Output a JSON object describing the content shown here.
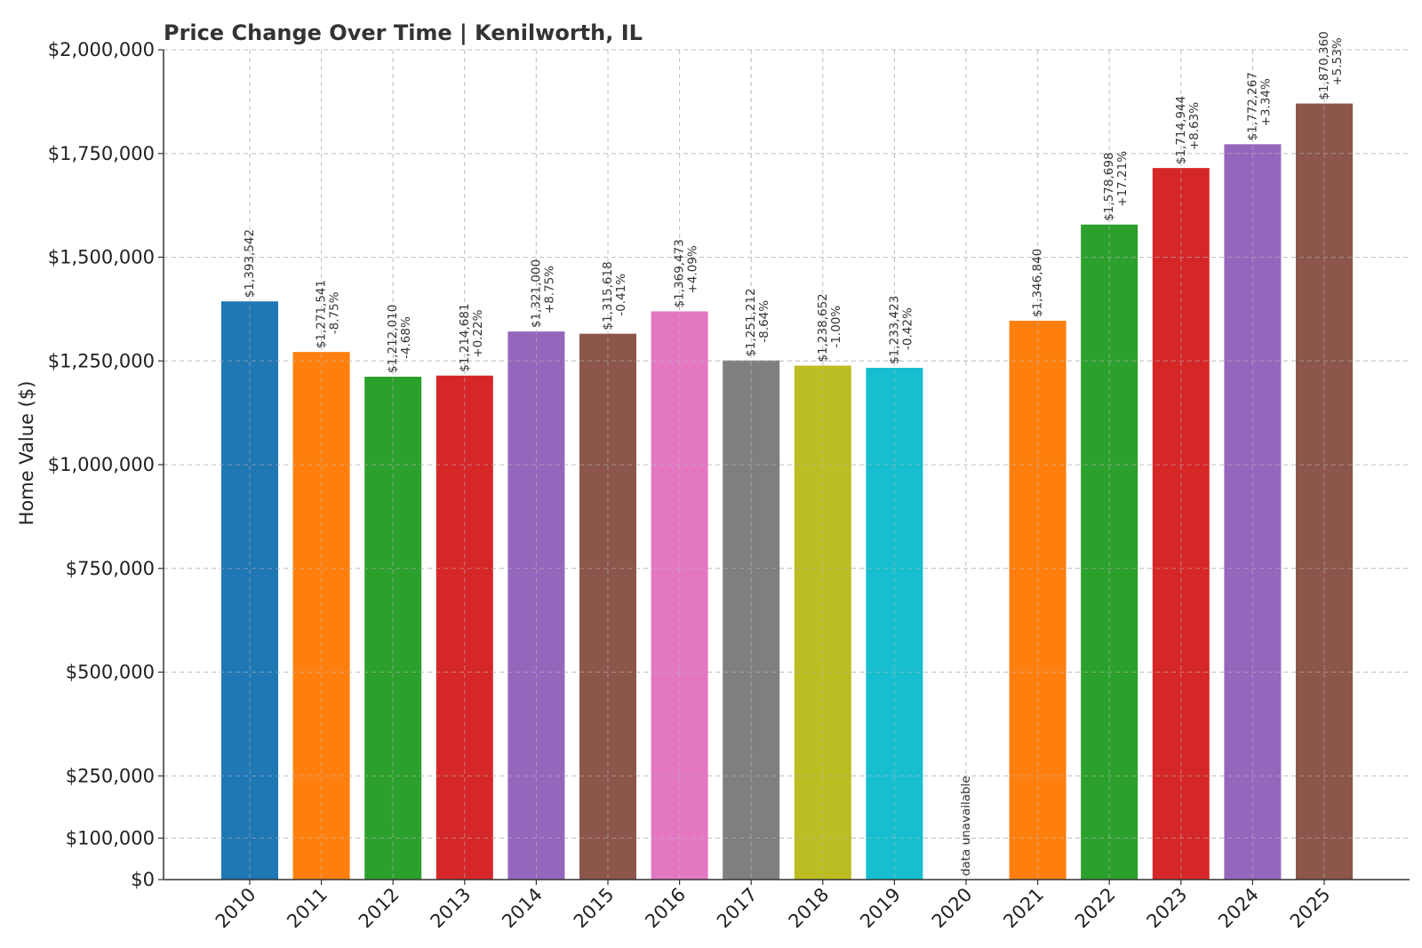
{
  "chart_data": {
    "type": "bar",
    "title": "Price Change Over Time | Kenilworth, IL",
    "xlabel": "",
    "ylabel": "Home Value ($)",
    "ylim": [
      0,
      2000000
    ],
    "yticks": [
      0,
      100000,
      250000,
      500000,
      750000,
      1000000,
      1250000,
      1500000,
      1750000,
      2000000
    ],
    "ytick_labels": [
      "$0",
      "$100,000",
      "$250,000",
      "$500,000",
      "$750,000",
      "$1,000,000",
      "$1,250,000",
      "$1,500,000",
      "$1,750,000",
      "$2,000,000"
    ],
    "grid": true,
    "categories": [
      "2010",
      "2011",
      "2012",
      "2013",
      "2014",
      "2015",
      "2016",
      "2017",
      "2018",
      "2019",
      "2020",
      "2021",
      "2022",
      "2023",
      "2024",
      "2025"
    ],
    "values": [
      1393542,
      1271541,
      1212010,
      1214681,
      1321000,
      1315618,
      1369473,
      1251212,
      1238652,
      1233423,
      null,
      1346840,
      1578698,
      1714944,
      1772267,
      1870360
    ],
    "value_labels": [
      "$1,393,542",
      "$1,271,541",
      "$1,212,010",
      "$1,214,681",
      "$1,321,000",
      "$1,315,618",
      "$1,369,473",
      "$1,251,212",
      "$1,238,652",
      "$1,233,423",
      "data unavailable",
      "$1,346,840",
      "$1,578,698",
      "$1,714,944",
      "$1,772,267",
      "$1,870,360"
    ],
    "change_labels": [
      "",
      "-8.75%",
      "-4.68%",
      "+0.22%",
      "+8.75%",
      "-0.41%",
      "+4.09%",
      "-8.64%",
      "-1.00%",
      "-0.42%",
      "",
      "",
      "+17.21%",
      "+8.63%",
      "+3.34%",
      "+5.53%"
    ],
    "colors": [
      "#1f77b4",
      "#ff7f0e",
      "#2ca02c",
      "#d62728",
      "#9467bd",
      "#8c564b",
      "#e377c2",
      "#7f7f7f",
      "#bcbd22",
      "#17becf",
      "#1f77b4",
      "#ff7f0e",
      "#2ca02c",
      "#d62728",
      "#9467bd",
      "#8c564b"
    ]
  }
}
